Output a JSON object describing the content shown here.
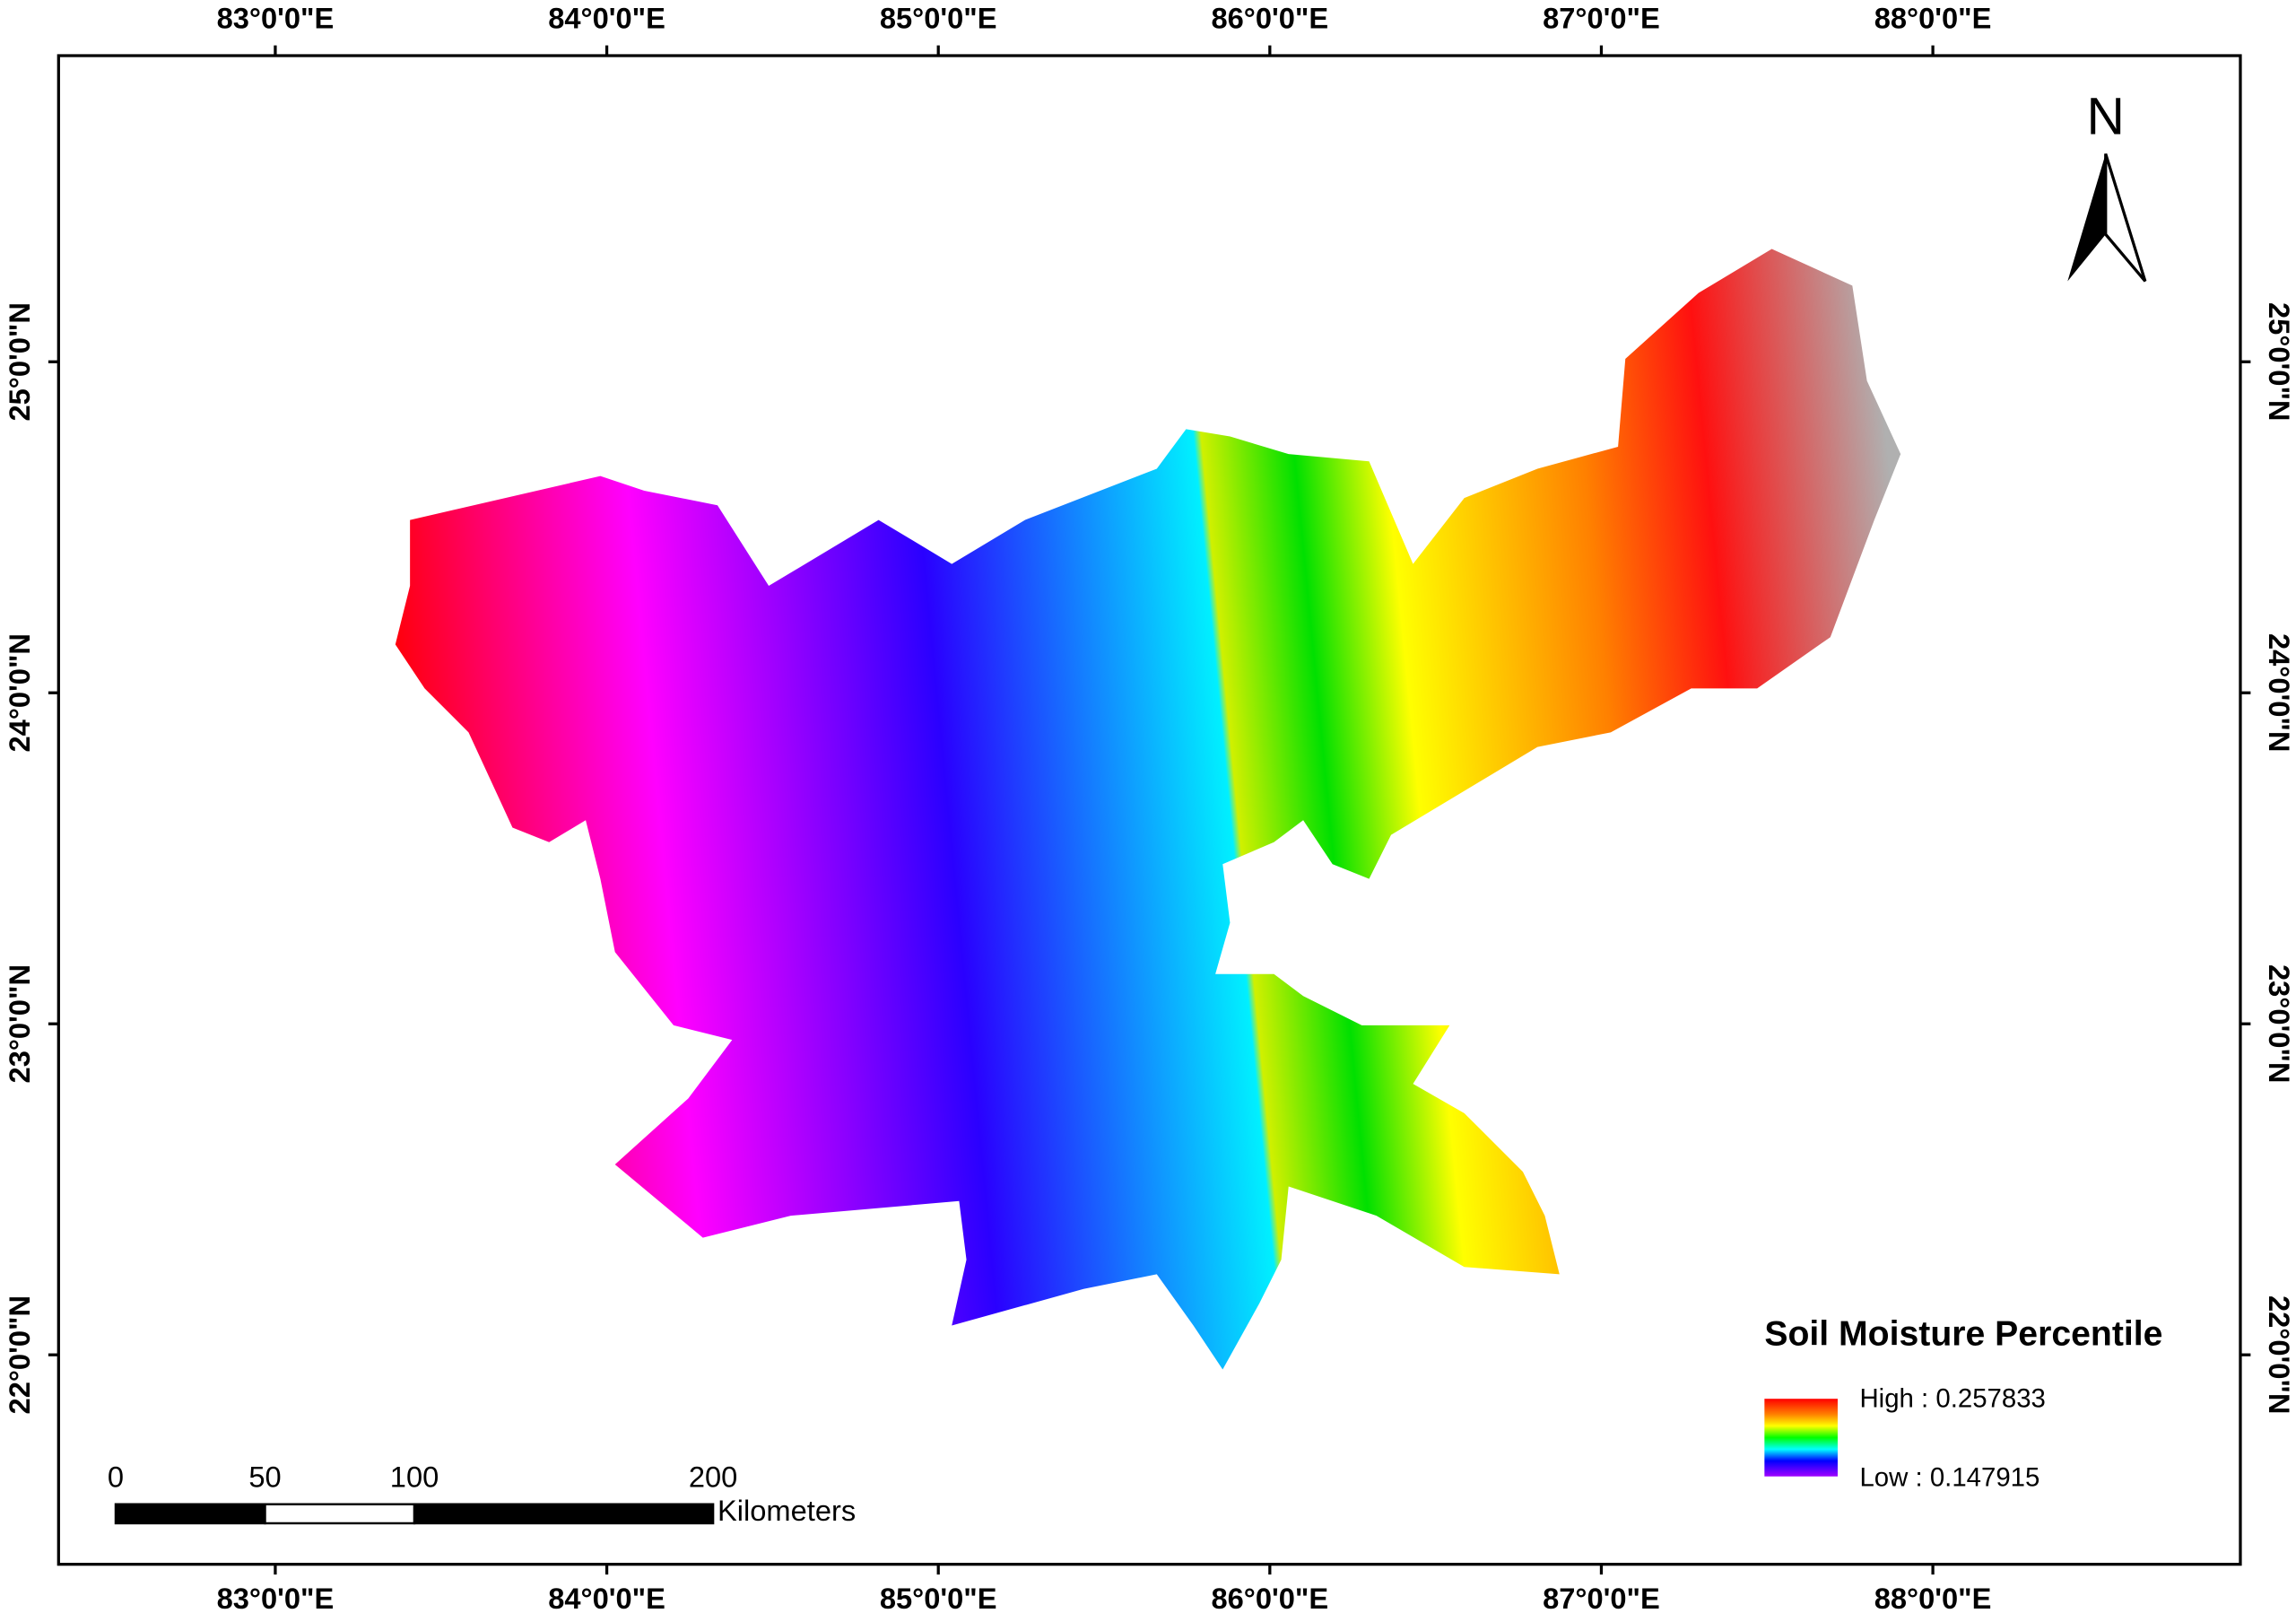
{
  "map": {
    "longitude_labels": [
      {
        "value": 83,
        "label": "83°0'0\"E"
      },
      {
        "value": 84,
        "label": "84°0'0\"E"
      },
      {
        "value": 85,
        "label": "85°0'0\"E"
      },
      {
        "value": 86,
        "label": "86°0'0\"E"
      },
      {
        "value": 87,
        "label": "87°0'0\"E"
      },
      {
        "value": 88,
        "label": "88°0'0\"E"
      }
    ],
    "latitude_labels": [
      {
        "value": 25,
        "label": "25°0'0\"N"
      },
      {
        "value": 24,
        "label": "24°0'0\"N"
      },
      {
        "value": 23,
        "label": "23°0'0\"N"
      },
      {
        "value": 22,
        "label": "22°0'0\"N"
      }
    ],
    "north_label": "N",
    "legend": {
      "title": "Soil Moisture Percentile",
      "high": "High : 0.257833",
      "low": "Low : 0.147915"
    },
    "scale_bar": {
      "ticks": [
        0,
        50,
        100,
        200
      ],
      "unit": "Kilometers"
    }
  }
}
